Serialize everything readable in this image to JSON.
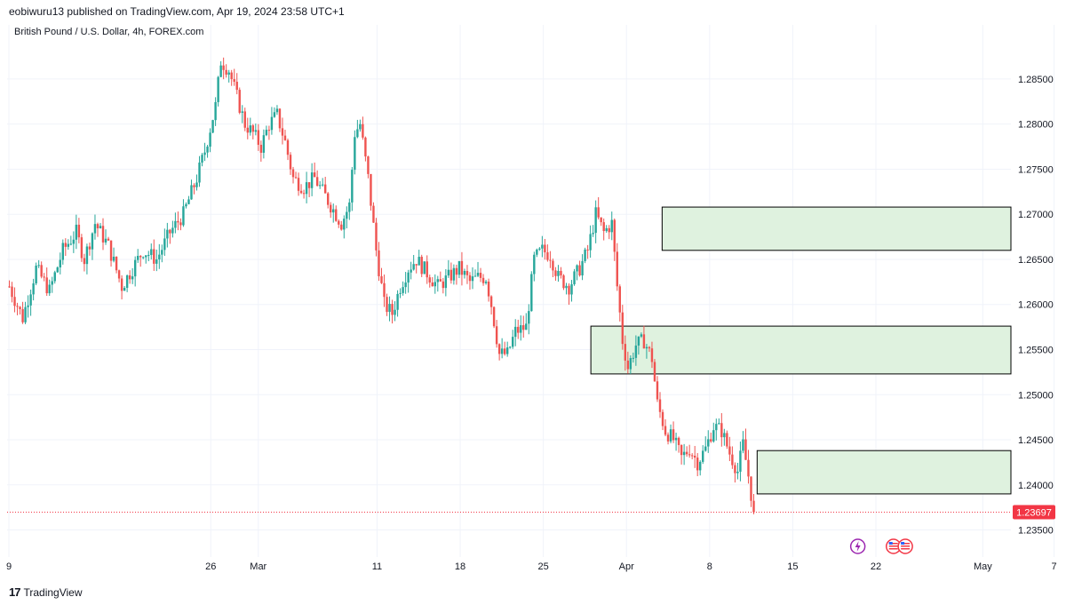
{
  "header": {
    "published": "eobiwuru13 published on TradingView.com, Apr 19, 2024 23:58 UTC+1",
    "symbol": "British Pound / U.S. Dollar, 4h, FOREX.com"
  },
  "footer": {
    "logo_mark": "17",
    "logo_text": "TradingView"
  },
  "colors": {
    "up": "#26a69a",
    "down": "#ef5350",
    "zone_fill": "#dff2df",
    "zone_stroke": "#000000",
    "price_tag": "#f23645",
    "grid": "#f0f3fa",
    "event_lightning": "#9c27b0",
    "event_flag": "#f23645"
  },
  "chart_data": {
    "type": "candlestick",
    "timeframe": "4h",
    "ylim": [
      1.232,
      1.291
    ],
    "y_ticks": [
      "1.23500",
      "1.24000",
      "1.24500",
      "1.25000",
      "1.25500",
      "1.26000",
      "1.26500",
      "1.27000",
      "1.27500",
      "1.28000",
      "1.28500"
    ],
    "x_ticks": [
      "9",
      "26",
      "Mar",
      "11",
      "18",
      "25",
      "Apr",
      "8",
      "15",
      "22",
      "May",
      "7"
    ],
    "last_price": "1.23697",
    "zones": [
      {
        "low": 1.266,
        "high": 1.2708,
        "from": "Apr 4",
        "to": "extend"
      },
      {
        "low": 1.2523,
        "high": 1.2576,
        "from": "Mar 29",
        "to": "extend"
      },
      {
        "low": 1.239,
        "high": 1.2438,
        "from": "Apr 12",
        "to": "extend"
      }
    ],
    "events": [
      {
        "date": "Apr 21",
        "kind": "lightning"
      },
      {
        "date": "Apr 24",
        "kind": "us-flag"
      },
      {
        "date": "Apr 25",
        "kind": "us-flag"
      }
    ],
    "path": [
      [
        0,
        1.262
      ],
      [
        5,
        1.2585
      ],
      [
        10,
        1.264
      ],
      [
        15,
        1.2615
      ],
      [
        20,
        1.266
      ],
      [
        25,
        1.268
      ],
      [
        28,
        1.265
      ],
      [
        32,
        1.269
      ],
      [
        37,
        1.2665
      ],
      [
        42,
        1.262
      ],
      [
        46,
        1.264
      ],
      [
        50,
        1.266
      ],
      [
        55,
        1.265
      ],
      [
        60,
        1.268
      ],
      [
        65,
        1.27
      ],
      [
        70,
        1.274
      ],
      [
        73,
        1.277
      ],
      [
        77,
        1.282
      ],
      [
        79,
        1.287
      ],
      [
        82,
        1.286
      ],
      [
        85,
        1.283
      ],
      [
        88,
        1.28
      ],
      [
        91,
        1.279
      ],
      [
        94,
        1.2775
      ],
      [
        97,
        1.28
      ],
      [
        100,
        1.281
      ],
      [
        103,
        1.278
      ],
      [
        106,
        1.274
      ],
      [
        110,
        1.273
      ],
      [
        114,
        1.274
      ],
      [
        118,
        1.272
      ],
      [
        121,
        1.2705
      ],
      [
        124,
        1.269
      ],
      [
        127,
        1.271
      ],
      [
        129,
        1.279
      ],
      [
        131,
        1.28
      ],
      [
        134,
        1.274
      ],
      [
        137,
        1.266
      ],
      [
        140,
        1.26
      ],
      [
        143,
        1.259
      ],
      [
        146,
        1.262
      ],
      [
        149,
        1.264
      ],
      [
        152,
        1.265
      ],
      [
        156,
        1.2635
      ],
      [
        160,
        1.262
      ],
      [
        164,
        1.263
      ],
      [
        168,
        1.264
      ],
      [
        172,
        1.2625
      ],
      [
        175,
        1.263
      ],
      [
        178,
        1.263
      ],
      [
        180,
        1.26
      ],
      [
        183,
        1.2545
      ],
      [
        186,
        1.2545
      ],
      [
        189,
        1.257
      ],
      [
        193,
        1.2575
      ],
      [
        196,
        1.265
      ],
      [
        199,
        1.266
      ],
      [
        202,
        1.2655
      ],
      [
        205,
        1.263
      ],
      [
        209,
        1.262
      ],
      [
        213,
        1.264
      ],
      [
        216,
        1.266
      ],
      [
        219,
        1.27
      ],
      [
        222,
        1.268
      ],
      [
        225,
        1.269
      ],
      [
        227,
        1.262
      ],
      [
        229,
        1.256
      ],
      [
        231,
        1.253
      ],
      [
        234,
        1.2555
      ],
      [
        237,
        1.256
      ],
      [
        240,
        1.254
      ],
      [
        242,
        1.249
      ],
      [
        245,
        1.246
      ],
      [
        248,
        1.245
      ],
      [
        251,
        1.243
      ],
      [
        254,
        1.244
      ],
      [
        257,
        1.2425
      ],
      [
        260,
        1.244
      ],
      [
        263,
        1.2465
      ],
      [
        266,
        1.246
      ],
      [
        269,
        1.2435
      ],
      [
        272,
        1.2415
      ],
      [
        274,
        1.2445
      ],
      [
        276,
        1.241
      ],
      [
        278,
        1.237
      ]
    ]
  }
}
